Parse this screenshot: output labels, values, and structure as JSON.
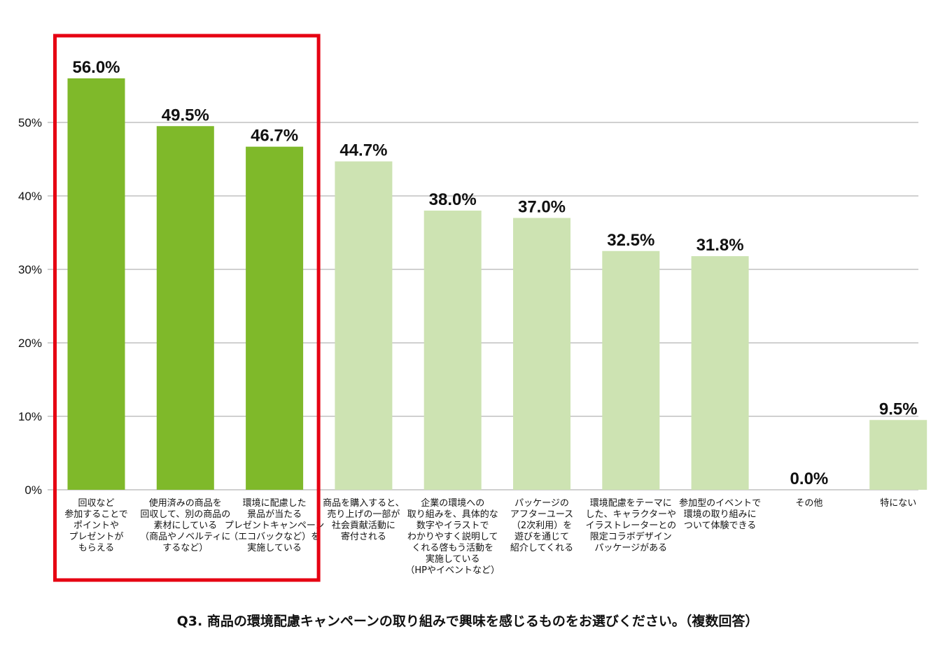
{
  "chart_data": {
    "type": "bar",
    "categories": [
      [
        "回収など",
        "参加することで",
        "ポイントや",
        "プレゼントが",
        "もらえる"
      ],
      [
        "使用済みの商品を",
        "回収して、別の商品の",
        "素材にしている",
        "（商品やノベルティに",
        "するなど）"
      ],
      [
        "環境に配慮した",
        "景品が当たる",
        "プレゼントキャンペーン",
        "（エコバックなど）を",
        "実施している"
      ],
      [
        "商品を購入すると、",
        "売り上げの一部が",
        "社会貢献活動に",
        "寄付される"
      ],
      [
        "企業の環境への",
        "取り組みを、具体的な",
        "数字やイラストで",
        "わかりやすく説明して",
        "くれる啓もう活動を",
        "実施している",
        "（HPやイベントなど）"
      ],
      [
        "パッケージの",
        "アフターユース",
        "（2次利用）を",
        "遊びを通じて",
        "紹介してくれる"
      ],
      [
        "環境配慮をテーマに",
        "した、キャラクターや",
        "イラストレーターとの",
        "限定コラボデザイン",
        "パッケージがある"
      ],
      [
        "参加型のイベントで",
        "環境の取り組みに",
        "ついて体験できる"
      ],
      [
        "その他"
      ],
      [
        "特にない"
      ]
    ],
    "values": [
      56.0,
      49.5,
      46.7,
      44.7,
      38.0,
      37.0,
      32.5,
      31.8,
      0.0,
      9.5
    ],
    "value_labels": [
      "56.0%",
      "49.5%",
      "46.7%",
      "44.7%",
      "38.0%",
      "37.0%",
      "32.5%",
      "31.8%",
      "0.0%",
      "9.5%"
    ],
    "highlighted": [
      true,
      true,
      true,
      false,
      false,
      false,
      false,
      false,
      false,
      false
    ],
    "yticks": [
      0,
      10,
      20,
      30,
      40,
      50
    ],
    "ytick_labels": [
      "0%",
      "10%",
      "20%",
      "30%",
      "40%",
      "50%"
    ],
    "ylim": [
      0,
      60
    ],
    "grid": true,
    "caption": "Q3. 商品の環境配慮キャンペーンの取り組みで興味を感じるものをお選びください。（複数回答）",
    "colors": {
      "highlight_bar": "#7fb92a",
      "normal_bar": "#cde3b2",
      "highlight_box": "#e60012",
      "grid": "#b5b5b5"
    }
  }
}
